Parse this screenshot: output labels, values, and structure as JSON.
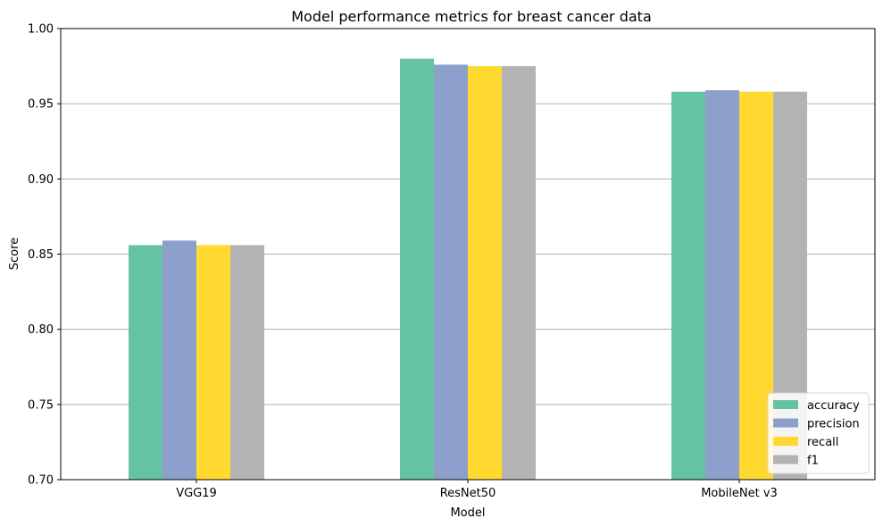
{
  "chart_data": {
    "type": "bar",
    "title": "Model performance metrics for breast cancer data",
    "xlabel": "Model",
    "ylabel": "Score",
    "categories": [
      "VGG19",
      "ResNet50",
      "MobileNet v3"
    ],
    "series": [
      {
        "name": "accuracy",
        "color": "#66c2a5",
        "values": [
          0.856,
          0.98,
          0.958
        ]
      },
      {
        "name": "precision",
        "color": "#8da0cb",
        "values": [
          0.859,
          0.976,
          0.959
        ]
      },
      {
        "name": "recall",
        "color": "#ffd92f",
        "values": [
          0.856,
          0.975,
          0.958
        ]
      },
      {
        "name": "f1",
        "color": "#b3b3b3",
        "values": [
          0.856,
          0.975,
          0.958
        ]
      }
    ],
    "ylim": [
      0.7,
      1.0
    ],
    "yticks": [
      0.7,
      0.75,
      0.8,
      0.85,
      0.9,
      0.95,
      1.0
    ],
    "ytick_labels": [
      "0.70",
      "0.75",
      "0.80",
      "0.85",
      "0.90",
      "0.95",
      "1.00"
    ],
    "grid": "y",
    "legend_position": "lower-right"
  }
}
